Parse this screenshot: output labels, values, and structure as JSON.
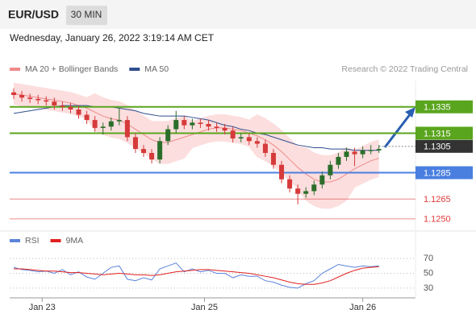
{
  "header": {
    "symbol": "EUR/USD",
    "interval": "30 MIN",
    "timestamp": "Wednesday, January 26, 2022 3:19:14 AM CET"
  },
  "chart_data": [
    {
      "type": "candlestick",
      "credit": "Research © 2022 Trading Central",
      "up_color": "#2b6e2b",
      "down_color": "#d63a3a",
      "xlim": [
        0,
        100
      ],
      "xticks": [
        {
          "value": 8,
          "label": "Jan 23"
        },
        {
          "value": 48,
          "label": "Jan 25"
        },
        {
          "value": 87,
          "label": "Jan 26"
        }
      ],
      "ylim": [
        1.1245,
        1.1355
      ],
      "x": [
        1,
        3,
        5,
        7,
        9,
        11,
        13,
        15,
        17,
        19,
        21,
        23,
        25,
        27,
        29,
        31,
        33,
        35,
        37,
        39,
        41,
        43,
        45,
        47,
        49,
        51,
        53,
        55,
        57,
        59,
        61,
        63,
        65,
        67,
        69,
        71,
        73,
        75,
        77,
        79,
        81,
        83,
        85,
        87,
        89,
        91
      ],
      "open": [
        1.1346,
        1.1344,
        1.1342,
        1.1341,
        1.134,
        1.1339,
        1.1336,
        1.1335,
        1.1333,
        1.1329,
        1.1325,
        1.1319,
        1.132,
        1.1324,
        1.1325,
        1.1312,
        1.1303,
        1.13,
        1.1295,
        1.1309,
        1.1318,
        1.1325,
        1.1321,
        1.1323,
        1.1322,
        1.132,
        1.1319,
        1.1317,
        1.1311,
        1.1312,
        1.1309,
        1.1307,
        1.13,
        1.1291,
        1.128,
        1.1273,
        1.1269,
        1.1271,
        1.1276,
        1.1283,
        1.1291,
        1.1297,
        1.1301,
        1.1299,
        1.1302,
        1.1302
      ],
      "high": [
        1.1349,
        1.1347,
        1.1345,
        1.1344,
        1.1343,
        1.1342,
        1.1339,
        1.1338,
        1.1336,
        1.1332,
        1.1328,
        1.1323,
        1.1327,
        1.1334,
        1.1328,
        1.1315,
        1.1306,
        1.1303,
        1.1312,
        1.1321,
        1.1332,
        1.1328,
        1.1326,
        1.1326,
        1.1325,
        1.1323,
        1.1322,
        1.132,
        1.1315,
        1.1315,
        1.1312,
        1.131,
        1.1303,
        1.1294,
        1.1283,
        1.1276,
        1.1274,
        1.1279,
        1.1286,
        1.1294,
        1.13,
        1.1304,
        1.1304,
        1.1305,
        1.1306,
        1.1306
      ],
      "low": [
        1.1341,
        1.1339,
        1.1338,
        1.1337,
        1.1336,
        1.1333,
        1.1332,
        1.133,
        1.1326,
        1.1322,
        1.1316,
        1.1314,
        1.1317,
        1.1321,
        1.1309,
        1.13,
        1.1297,
        1.1292,
        1.1292,
        1.1306,
        1.1315,
        1.1318,
        1.1318,
        1.1319,
        1.1317,
        1.1316,
        1.1314,
        1.1308,
        1.1308,
        1.1306,
        1.1304,
        1.1297,
        1.1288,
        1.1277,
        1.127,
        1.1261,
        1.1266,
        1.1268,
        1.1273,
        1.128,
        1.1288,
        1.1294,
        1.129,
        1.1296,
        1.1299,
        1.13
      ],
      "close": [
        1.1344,
        1.1342,
        1.1341,
        1.134,
        1.1339,
        1.1336,
        1.1335,
        1.1333,
        1.1329,
        1.1325,
        1.1319,
        1.132,
        1.1324,
        1.1325,
        1.1312,
        1.1303,
        1.13,
        1.1295,
        1.1309,
        1.1318,
        1.1325,
        1.1321,
        1.1323,
        1.1322,
        1.132,
        1.1319,
        1.1317,
        1.1311,
        1.1312,
        1.1309,
        1.1307,
        1.13,
        1.1291,
        1.128,
        1.1273,
        1.1269,
        1.1271,
        1.1276,
        1.1283,
        1.1291,
        1.1297,
        1.1301,
        1.1299,
        1.1302,
        1.1302,
        1.1303
      ],
      "series": [
        {
          "name": "MA 20 + Bollinger Bands",
          "color": "#f08a8a",
          "band_color": "#fcdede",
          "values": [
            1.1345,
            1.1344,
            1.1343,
            1.1342,
            1.1341,
            1.134,
            1.1339,
            1.1338,
            1.1336,
            1.1334,
            1.1331,
            1.1328,
            1.1326,
            1.1325,
            1.1322,
            1.1318,
            1.1314,
            1.131,
            1.1308,
            1.1308,
            1.131,
            1.1312,
            1.1314,
            1.1316,
            1.1318,
            1.1319,
            1.1319,
            1.1318,
            1.1317,
            1.1315,
            1.1313,
            1.131,
            1.1306,
            1.1301,
            1.1295,
            1.1289,
            1.1284,
            1.128,
            1.1278,
            1.1278,
            1.128,
            1.1284,
            1.1288,
            1.1291,
            1.1294,
            1.1296
          ],
          "upper": [
            1.1353,
            1.1352,
            1.1351,
            1.135,
            1.1349,
            1.1348,
            1.1347,
            1.1346,
            1.1344,
            1.1342,
            1.1345,
            1.1342,
            1.134,
            1.1339,
            1.1336,
            1.1332,
            1.1328,
            1.1324,
            1.1324,
            1.1324,
            1.1326,
            1.1328,
            1.1324,
            1.1326,
            1.1328,
            1.1329,
            1.1329,
            1.1328,
            1.1327,
            1.1325,
            1.1329,
            1.1326,
            1.1322,
            1.1317,
            1.1311,
            1.1305,
            1.1304,
            1.13,
            1.1298,
            1.1298,
            1.13,
            1.1304,
            1.1302,
            1.1305,
            1.1308,
            1.131
          ],
          "lower": [
            1.1337,
            1.1336,
            1.1335,
            1.1334,
            1.1333,
            1.1332,
            1.1331,
            1.133,
            1.1328,
            1.1326,
            1.1317,
            1.1314,
            1.1312,
            1.1311,
            1.1308,
            1.1304,
            1.13,
            1.1296,
            1.1292,
            1.1292,
            1.1294,
            1.1296,
            1.1304,
            1.1306,
            1.1308,
            1.1309,
            1.1309,
            1.1308,
            1.1307,
            1.1305,
            1.1297,
            1.1294,
            1.129,
            1.1285,
            1.1279,
            1.1273,
            1.1264,
            1.126,
            1.1258,
            1.1258,
            1.126,
            1.1264,
            1.1274,
            1.1277,
            1.128,
            1.1282
          ]
        },
        {
          "name": "MA 50",
          "color": "#2f4f8f",
          "values": [
            1.133,
            1.1331,
            1.1332,
            1.1333,
            1.1334,
            1.1335,
            1.1336,
            1.1336,
            1.1336,
            1.1336,
            1.1335,
            1.1335,
            1.1335,
            1.1334,
            1.1333,
            1.1332,
            1.133,
            1.1329,
            1.1328,
            1.1328,
            1.1328,
            1.1328,
            1.1327,
            1.1326,
            1.1325,
            1.1323,
            1.1321,
            1.132,
            1.1318,
            1.1317,
            1.1315,
            1.1314,
            1.1312,
            1.131,
            1.1308,
            1.1306,
            1.1305,
            1.1304,
            1.1304,
            1.1303,
            1.1303,
            1.1303,
            1.1302,
            1.1302,
            1.1302,
            1.1302
          ]
        }
      ],
      "levels": [
        {
          "value": 1.1335,
          "label": "1.1335",
          "color": "#5aa51e",
          "box": true,
          "line": "solid"
        },
        {
          "value": 1.1315,
          "label": "1.1315",
          "color": "#5aa51e",
          "box": true,
          "line": "solid"
        },
        {
          "value": 1.1305,
          "label": "1.1305",
          "color": "#333333",
          "box": true,
          "line": "dotted"
        },
        {
          "value": 1.1285,
          "label": "1.1285",
          "color": "#4a7fe0",
          "box": true,
          "line": "solid"
        },
        {
          "value": 1.1265,
          "label": "1.1265",
          "color": "#e03a3a",
          "box": false,
          "line": "thin"
        },
        {
          "value": 1.125,
          "label": "1.1250",
          "color": "#e03a3a",
          "box": false,
          "line": "thin"
        }
      ]
    },
    {
      "type": "line",
      "xlim": [
        0,
        100
      ],
      "ylim": [
        19,
        93
      ],
      "yticks": [
        30,
        50,
        70
      ],
      "grid": true,
      "x": [
        1,
        3,
        5,
        7,
        9,
        11,
        13,
        15,
        17,
        19,
        21,
        23,
        25,
        27,
        29,
        31,
        33,
        35,
        37,
        39,
        41,
        43,
        45,
        47,
        49,
        51,
        53,
        55,
        57,
        59,
        61,
        63,
        65,
        67,
        69,
        71,
        73,
        75,
        77,
        79,
        81,
        83,
        85,
        87,
        89,
        91
      ],
      "series": [
        {
          "name": "RSI",
          "color": "#5b84d9",
          "values": [
            58,
            55,
            54,
            52,
            53,
            50,
            55,
            48,
            52,
            45,
            42,
            50,
            58,
            60,
            42,
            40,
            44,
            41,
            56,
            60,
            64,
            52,
            56,
            52,
            54,
            50,
            50,
            44,
            48,
            46,
            46,
            40,
            38,
            34,
            31,
            30,
            36,
            40,
            50,
            56,
            62,
            60,
            58,
            60,
            59,
            60
          ]
        },
        {
          "name": "9MA",
          "color": "#e02020",
          "values": [
            56,
            56,
            55,
            54,
            53,
            53,
            52,
            51,
            51,
            50,
            49,
            48,
            49,
            50,
            49,
            48,
            48,
            47,
            48,
            50,
            52,
            53,
            54,
            55,
            55,
            54,
            53,
            52,
            51,
            50,
            48,
            46,
            44,
            41,
            38,
            36,
            35,
            35,
            37,
            40,
            45,
            50,
            54,
            57,
            58,
            59
          ]
        }
      ]
    }
  ]
}
